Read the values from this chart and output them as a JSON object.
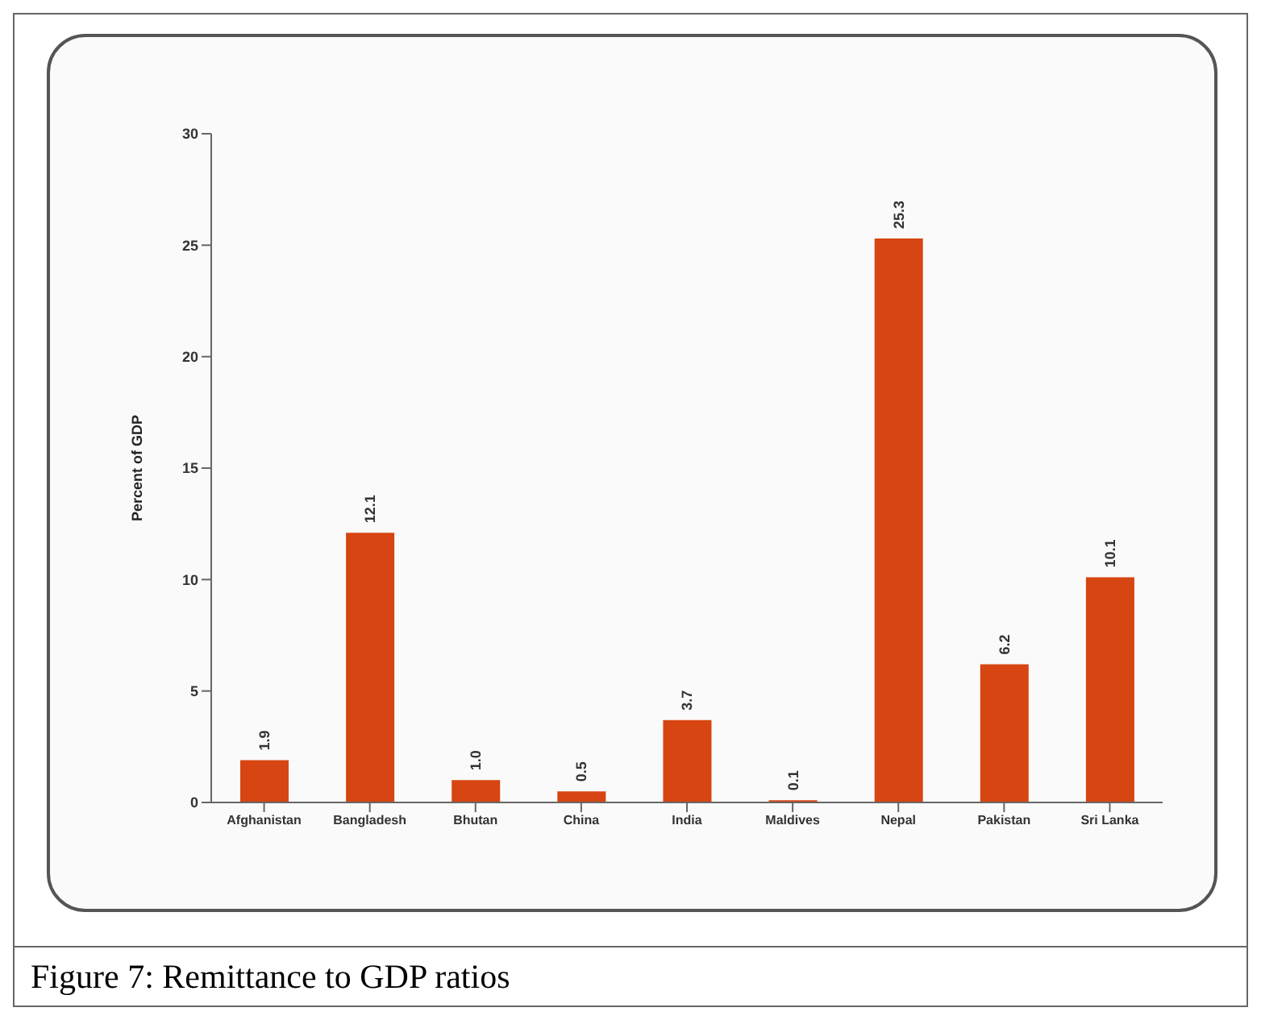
{
  "chart_data": {
    "type": "bar",
    "ylabel": "Percent of GDP",
    "categories": [
      "Afghanistan",
      "Bangladesh",
      "Bhutan",
      "China",
      "India",
      "Maldives",
      "Nepal",
      "Pakistan",
      "Sri Lanka"
    ],
    "values": [
      1.9,
      12.1,
      1.0,
      0.5,
      3.7,
      0.1,
      25.3,
      6.2,
      10.1
    ],
    "value_labels": [
      "1.9",
      "12.1",
      "1.0",
      "0.5",
      "3.7",
      "0.1",
      "25.3",
      "6.2",
      "10.1"
    ],
    "color": "#d64512",
    "ylim": [
      0,
      30
    ],
    "yticks": [
      0,
      5,
      10,
      15,
      20,
      25,
      30
    ],
    "grid": false,
    "annotations": [
      "Figure 7: Remittance to GDP ratios"
    ]
  }
}
